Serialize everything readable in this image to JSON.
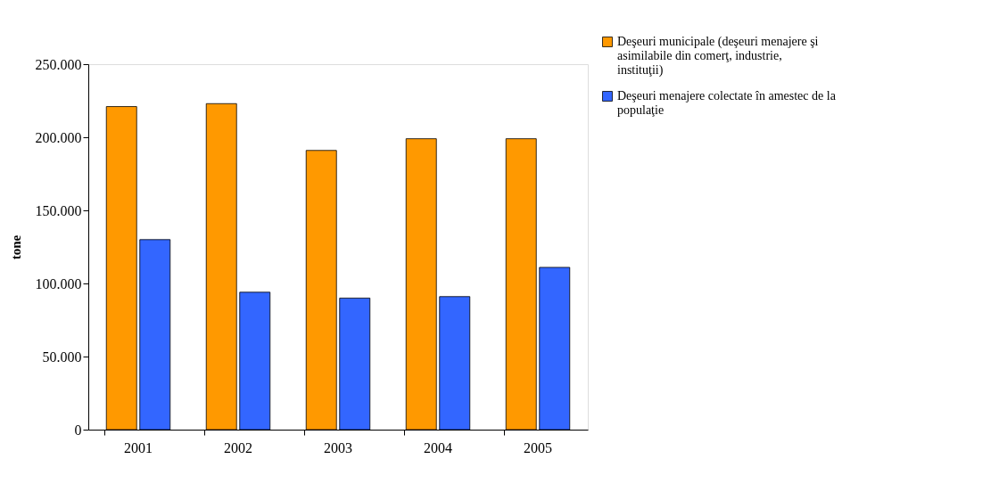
{
  "chart_data": {
    "type": "bar",
    "ylabel": "tone",
    "categories": [
      "2001",
      "2002",
      "2003",
      "2004",
      "2005"
    ],
    "series": [
      {
        "name": "Deşeuri municipale (deşeuri menajere şi asimilabile din comerţ, industrie, instituţii)",
        "color": "#ff9900",
        "values": [
          221000,
          223000,
          191000,
          199000,
          199000
        ]
      },
      {
        "name": "Deşeuri menajere colectate în amestec de la populaţie",
        "color": "#3366ff",
        "values": [
          130000,
          94000,
          90000,
          91000,
          111000
        ]
      }
    ],
    "ylim": [
      0,
      250000
    ],
    "yticks": [
      {
        "value": 0,
        "label": "0"
      },
      {
        "value": 50000,
        "label": "50.000"
      },
      {
        "value": 100000,
        "label": "100.000"
      },
      {
        "value": 150000,
        "label": "150.000"
      },
      {
        "value": 200000,
        "label": "200.000"
      },
      {
        "value": 250000,
        "label": "250.000"
      }
    ],
    "grid": false,
    "legend": "top right"
  }
}
